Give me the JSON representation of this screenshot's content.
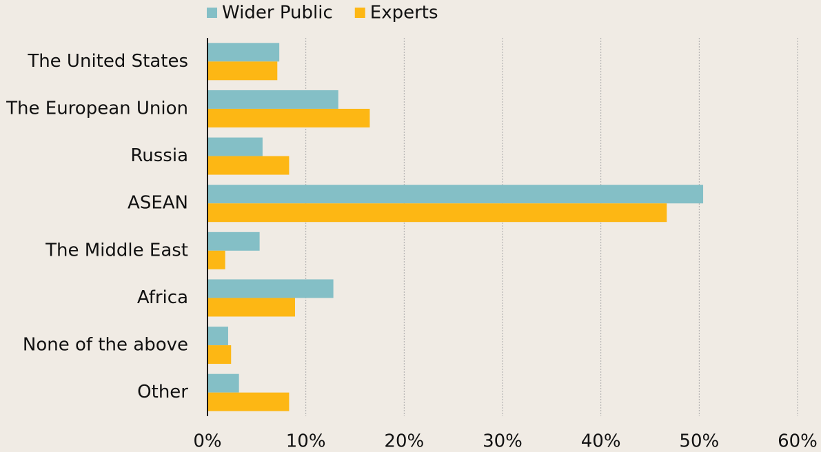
{
  "chart_data": {
    "type": "barh",
    "categories": [
      "The United States",
      "The European Union",
      "Russia",
      "ASEAN",
      "The Middle East",
      "Africa",
      "None of the above",
      "Other"
    ],
    "series": [
      {
        "name": "Wider Public",
        "color": "#84bfc6",
        "values": [
          7.3,
          13.3,
          5.6,
          50.4,
          5.3,
          12.8,
          2.1,
          3.2
        ]
      },
      {
        "name": "Experts",
        "color": "#fdb714",
        "values": [
          7.1,
          16.5,
          8.3,
          46.7,
          1.8,
          8.9,
          2.4,
          8.3
        ]
      }
    ],
    "xlim": [
      0,
      60
    ],
    "xticks": [
      {
        "value": 0,
        "label": "0%"
      },
      {
        "value": 10,
        "label": "10%"
      },
      {
        "value": 20,
        "label": "20%"
      },
      {
        "value": 30,
        "label": "30%"
      },
      {
        "value": 40,
        "label": "40%"
      },
      {
        "value": 50,
        "label": "50%"
      },
      {
        "value": 60,
        "label": "60%"
      }
    ],
    "grid": true,
    "legend": "top"
  }
}
